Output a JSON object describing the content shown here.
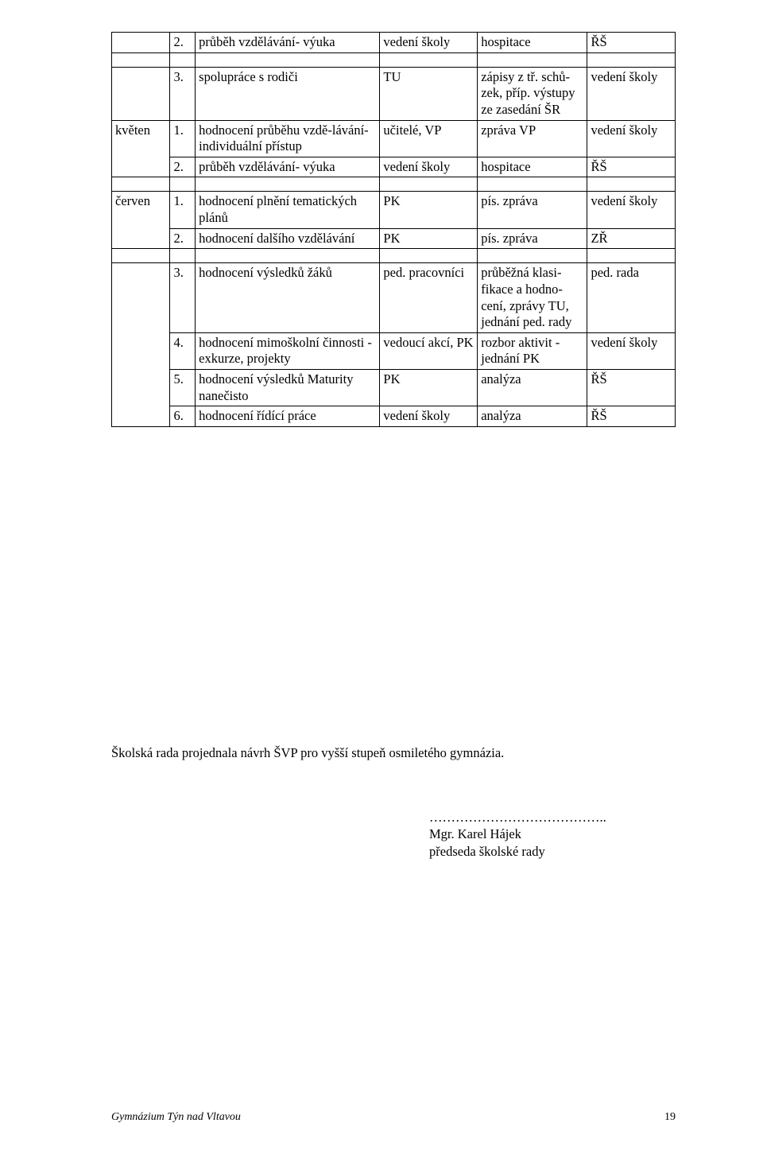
{
  "table": {
    "block1": {
      "month": "",
      "rows": [
        {
          "n": "2.",
          "task": "průběh vzdělávání- výuka",
          "who": "vedení školy",
          "out": "hospitace",
          "res": "ŘŠ"
        }
      ]
    },
    "block2": {
      "month": "",
      "rows": [
        {
          "n": "3.",
          "task": "spolupráce s rodiči",
          "who": "TU",
          "out": "zápisy z tř. schů-zek, příp. výstupy ze zasedání ŠR",
          "res": "vedení školy"
        }
      ]
    },
    "block3": {
      "month": "květen",
      "rows": [
        {
          "n": "1.",
          "task": "hodnocení průběhu vzdě-lávání- individuální přístup",
          "who": "učitelé, VP",
          "out": "zpráva VP",
          "res": "vedení školy"
        },
        {
          "n": "2.",
          "task": "průběh vzdělávání- výuka",
          "who": "vedení školy",
          "out": "hospitace",
          "res": "ŘŠ"
        }
      ]
    },
    "block4": {
      "month": "červen",
      "rows": [
        {
          "n": "1.",
          "task": "hodnocení plnění tematických plánů",
          "who": "PK",
          "out": "pís. zpráva",
          "res": "vedení školy"
        },
        {
          "n": "2.",
          "task": "hodnocení dalšího vzdělávání",
          "who": "PK",
          "out": "pís. zpráva",
          "res": "ZŘ"
        }
      ]
    },
    "block5": {
      "month": "",
      "rows": [
        {
          "n": "3.",
          "task": "hodnocení výsledků žáků",
          "who": "ped. pracovníci",
          "out": "průběžná klasi-fikace a hodno-cení, zprávy TU, jednání ped. rady",
          "res": "ped. rada"
        },
        {
          "n": "4.",
          "task": "hodnocení mimoškolní činnosti - exkurze, projekty",
          "who": "vedoucí akcí, PK",
          "out": "rozbor aktivit - jednání  PK",
          "res": "vedení školy"
        },
        {
          "n": "5.",
          "task": "hodnocení výsledků Maturity nanečisto",
          "who": "PK",
          "out": "analýza",
          "res": "ŘŠ"
        },
        {
          "n": "6.",
          "task": "hodnocení řídící práce",
          "who": "vedení školy",
          "out": "analýza",
          "res": "ŘŠ"
        }
      ]
    }
  },
  "paragraph": "Školská rada projednala návrh ŠVP pro vyšší stupeň osmiletého gymnázia.",
  "signature_dots": "…………………………………..",
  "signature_name": "Mgr. Karel Hájek",
  "signature_role": "předseda školské rady",
  "footer_left": "Gymnázium Týn nad Vltavou",
  "footer_page": "19"
}
